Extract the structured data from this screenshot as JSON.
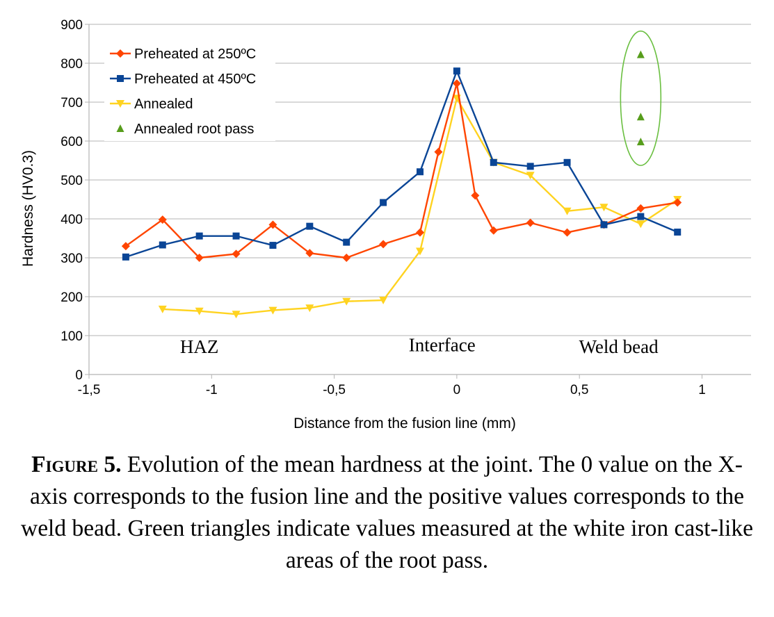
{
  "chart_data": {
    "type": "line",
    "xlabel": "Distance from the fusion line (mm)",
    "ylabel": "Hardness (HV0.3)",
    "xlim": [
      -1.5,
      1.2
    ],
    "ylim": [
      0,
      900
    ],
    "xticks": [
      -1.5,
      -1,
      -0.5,
      0,
      0.5,
      1
    ],
    "xtick_labels": [
      "-1,5",
      "-1",
      "-0,5",
      "0",
      "0,5",
      "1"
    ],
    "yticks": [
      0,
      100,
      200,
      300,
      400,
      500,
      600,
      700,
      800,
      900
    ],
    "grid": "horizontal",
    "legend_position": "top-left",
    "series": [
      {
        "name": "Preheated at 250ºC",
        "color": "#ff4500",
        "marker": "diamond",
        "x": [
          -1.35,
          -1.2,
          -1.05,
          -0.9,
          -0.75,
          -0.6,
          -0.45,
          -0.3,
          -0.15,
          -0.075,
          0,
          0.075,
          0.15,
          0.3,
          0.45,
          0.6,
          0.75,
          0.9
        ],
        "y": [
          330,
          398,
          300,
          310,
          385,
          312,
          300,
          335,
          365,
          572,
          748,
          460,
          370,
          390,
          365,
          385,
          427,
          442
        ]
      },
      {
        "name": "Preheated at 450ºC",
        "color": "#0a4596",
        "marker": "square",
        "x": [
          -1.35,
          -1.2,
          -1.05,
          -0.9,
          -0.75,
          -0.6,
          -0.45,
          -0.3,
          -0.15,
          0,
          0.15,
          0.3,
          0.45,
          0.6,
          0.75,
          0.9
        ],
        "y": [
          302,
          333,
          356,
          356,
          332,
          381,
          340,
          442,
          521,
          780,
          545,
          535,
          545,
          385,
          406,
          366
        ]
      },
      {
        "name": "Annealed",
        "color": "#ffd320",
        "marker": "triangle-down",
        "x": [
          -1.2,
          -1.05,
          -0.9,
          -0.75,
          -0.6,
          -0.45,
          -0.3,
          -0.15,
          0,
          0.15,
          0.3,
          0.45,
          0.6,
          0.75,
          0.9
        ],
        "y": [
          168,
          163,
          155,
          165,
          171,
          188,
          191,
          317,
          710,
          545,
          512,
          420,
          430,
          387,
          450
        ]
      },
      {
        "name": "Annealed root pass",
        "color": "#579d1c",
        "marker": "triangle-up",
        "line": false,
        "x": [
          0.75,
          0.75,
          0.75
        ],
        "y": [
          822,
          662,
          598
        ]
      }
    ],
    "annotations": [
      {
        "text": "HAZ",
        "x": -1.05,
        "y": 55
      },
      {
        "text": "Interface",
        "x": -0.06,
        "y": 60
      },
      {
        "text": "Weld bead",
        "x": 0.66,
        "y": 55
      }
    ],
    "highlight": {
      "shape": "ellipse",
      "color": "#6abf40",
      "around_series": "Annealed root pass"
    }
  },
  "caption": {
    "label": "Figure 5.",
    "text": " Evolution of the mean hardness at the joint. The 0 value on the X-axis corresponds to the fusion line and the positive values corresponds to the weld bead. Green triangles indicate values measured at the white iron cast-like areas of the root pass."
  }
}
